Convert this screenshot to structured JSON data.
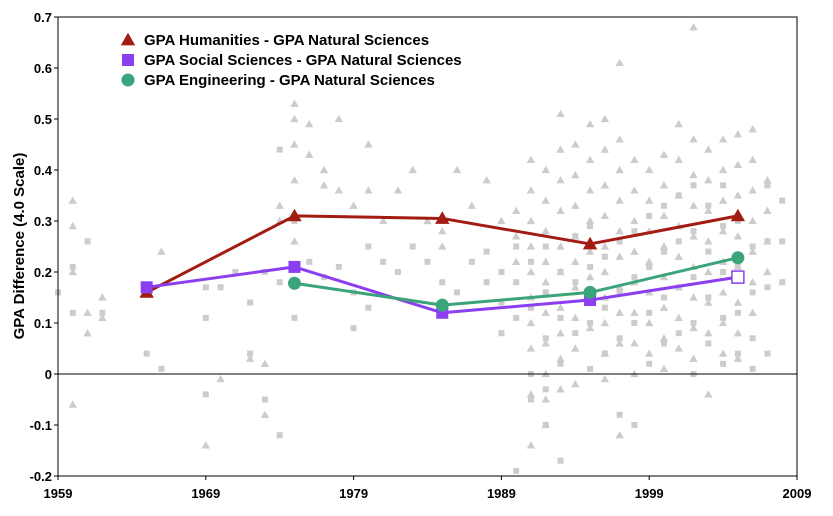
{
  "chart_data": {
    "type": "line",
    "title": "",
    "xlabel": "",
    "ylabel": "GPA Difference (4.0 Scale)",
    "xlim": [
      1959,
      2009
    ],
    "ylim": [
      -0.2,
      0.7
    ],
    "x_ticks": [
      "1959",
      "1969",
      "1979",
      "1989",
      "1999",
      "2009"
    ],
    "y_ticks": [
      "-0.2",
      "-0.1",
      "0",
      "0.1",
      "0.2",
      "0.3",
      "0.4",
      "0.5",
      "0.6",
      "0.7"
    ],
    "legend_position": "top-left",
    "series": [
      {
        "name": "GPA Humanities - GPA Natural Sciences",
        "marker": "triangle",
        "color": "#a31c13",
        "x": [
          1965,
          1975,
          1985,
          1995,
          2005
        ],
        "values": [
          0.16,
          0.31,
          0.305,
          0.255,
          0.31
        ]
      },
      {
        "name": "GPA Social Sciences - GPA Natural Sciences",
        "marker": "square",
        "color": "#8b3ff0",
        "x": [
          1965,
          1975,
          1985,
          1995,
          2005
        ],
        "values": [
          0.17,
          0.21,
          0.12,
          0.145,
          0.19
        ]
      },
      {
        "name": "GPA Engineering - GPA Natural Sciences",
        "marker": "circle",
        "color": "#3aa57a",
        "x": [
          1975,
          1985,
          1995,
          2005
        ],
        "values": [
          0.178,
          0.135,
          0.16,
          0.228
        ]
      }
    ],
    "background_points": {
      "color": "#cccccc",
      "triangles": [
        [
          1960,
          0.34
        ],
        [
          1960,
          0.29
        ],
        [
          1960,
          0.2
        ],
        [
          1960,
          -0.06
        ],
        [
          1961,
          0.12
        ],
        [
          1961,
          0.08
        ],
        [
          1962,
          0.15
        ],
        [
          1962,
          0.11
        ],
        [
          1966,
          0.24
        ],
        [
          1969,
          -0.14
        ],
        [
          1970,
          -0.01
        ],
        [
          1972,
          0.03
        ],
        [
          1973,
          0.02
        ],
        [
          1973,
          -0.08
        ],
        [
          1974,
          0.33
        ],
        [
          1974,
          0.3
        ],
        [
          1975,
          0.53
        ],
        [
          1975,
          0.5
        ],
        [
          1975,
          0.45
        ],
        [
          1975,
          0.38
        ],
        [
          1975,
          0.26
        ],
        [
          1976,
          0.49
        ],
        [
          1976,
          0.43
        ],
        [
          1977,
          0.4
        ],
        [
          1977,
          0.37
        ],
        [
          1978,
          0.5
        ],
        [
          1978,
          0.36
        ],
        [
          1979,
          0.33
        ],
        [
          1980,
          0.45
        ],
        [
          1980,
          0.36
        ],
        [
          1981,
          0.3
        ],
        [
          1982,
          0.36
        ],
        [
          1983,
          0.4
        ],
        [
          1984,
          0.3
        ],
        [
          1985,
          0.28
        ],
        [
          1985,
          0.25
        ],
        [
          1986,
          0.4
        ],
        [
          1987,
          0.33
        ],
        [
          1988,
          0.38
        ],
        [
          1989,
          0.3
        ],
        [
          1990,
          0.32
        ],
        [
          1990,
          0.27
        ],
        [
          1990,
          0.22
        ],
        [
          1991,
          0.42
        ],
        [
          1991,
          0.36
        ],
        [
          1991,
          0.3
        ],
        [
          1991,
          0.25
        ],
        [
          1991,
          0.2
        ],
        [
          1991,
          0.15
        ],
        [
          1991,
          0.1
        ],
        [
          1991,
          0.05
        ],
        [
          1991,
          -0.04
        ],
        [
          1991,
          -0.14
        ],
        [
          1992,
          0.4
        ],
        [
          1992,
          0.34
        ],
        [
          1992,
          0.28
        ],
        [
          1992,
          0.22
        ],
        [
          1992,
          0.18
        ],
        [
          1992,
          0.12
        ],
        [
          1992,
          0.06
        ],
        [
          1992,
          0.0
        ],
        [
          1992,
          -0.05
        ],
        [
          1992,
          -0.1
        ],
        [
          1993,
          0.51
        ],
        [
          1993,
          0.44
        ],
        [
          1993,
          0.38
        ],
        [
          1993,
          0.32
        ],
        [
          1993,
          0.25
        ],
        [
          1993,
          0.2
        ],
        [
          1993,
          0.13
        ],
        [
          1993,
          0.08
        ],
        [
          1993,
          0.03
        ],
        [
          1993,
          -0.03
        ],
        [
          1994,
          0.45
        ],
        [
          1994,
          0.39
        ],
        [
          1994,
          0.33
        ],
        [
          1994,
          0.27
        ],
        [
          1994,
          0.22
        ],
        [
          1994,
          0.17
        ],
        [
          1994,
          0.11
        ],
        [
          1994,
          0.05
        ],
        [
          1994,
          -0.02
        ],
        [
          1995,
          0.49
        ],
        [
          1995,
          0.42
        ],
        [
          1995,
          0.36
        ],
        [
          1995,
          0.3
        ],
        [
          1995,
          0.24
        ],
        [
          1995,
          0.19
        ],
        [
          1995,
          0.14
        ],
        [
          1995,
          0.09
        ],
        [
          1996,
          0.5
        ],
        [
          1996,
          0.44
        ],
        [
          1996,
          0.37
        ],
        [
          1996,
          0.31
        ],
        [
          1996,
          0.25
        ],
        [
          1996,
          0.2
        ],
        [
          1996,
          0.15
        ],
        [
          1996,
          0.1
        ],
        [
          1996,
          0.04
        ],
        [
          1996,
          -0.01
        ],
        [
          1997,
          0.61
        ],
        [
          1997,
          0.46
        ],
        [
          1997,
          0.4
        ],
        [
          1997,
          0.34
        ],
        [
          1997,
          0.28
        ],
        [
          1997,
          0.23
        ],
        [
          1997,
          0.17
        ],
        [
          1997,
          0.12
        ],
        [
          1997,
          0.06
        ],
        [
          1997,
          -0.12
        ],
        [
          1998,
          0.42
        ],
        [
          1998,
          0.36
        ],
        [
          1998,
          0.3
        ],
        [
          1998,
          0.24
        ],
        [
          1998,
          0.18
        ],
        [
          1998,
          0.12
        ],
        [
          1998,
          0.06
        ],
        [
          1998,
          0.0
        ],
        [
          1999,
          0.4
        ],
        [
          1999,
          0.34
        ],
        [
          1999,
          0.28
        ],
        [
          1999,
          0.22
        ],
        [
          1999,
          0.16
        ],
        [
          1999,
          0.1
        ],
        [
          1999,
          0.04
        ],
        [
          2000,
          0.43
        ],
        [
          2000,
          0.37
        ],
        [
          2000,
          0.31
        ],
        [
          2000,
          0.25
        ],
        [
          2000,
          0.19
        ],
        [
          2000,
          0.13
        ],
        [
          2000,
          0.07
        ],
        [
          2000,
          0.01
        ],
        [
          2001,
          0.49
        ],
        [
          2001,
          0.42
        ],
        [
          2001,
          0.35
        ],
        [
          2001,
          0.29
        ],
        [
          2001,
          0.23
        ],
        [
          2001,
          0.17
        ],
        [
          2001,
          0.11
        ],
        [
          2001,
          0.05
        ],
        [
          2002,
          0.68
        ],
        [
          2002,
          0.46
        ],
        [
          2002,
          0.39
        ],
        [
          2002,
          0.33
        ],
        [
          2002,
          0.27
        ],
        [
          2002,
          0.21
        ],
        [
          2002,
          0.15
        ],
        [
          2002,
          0.09
        ],
        [
          2002,
          0.03
        ],
        [
          2003,
          0.44
        ],
        [
          2003,
          0.38
        ],
        [
          2003,
          0.32
        ],
        [
          2003,
          0.26
        ],
        [
          2003,
          0.2
        ],
        [
          2003,
          0.14
        ],
        [
          2003,
          0.08
        ],
        [
          2003,
          -0.04
        ],
        [
          2004,
          0.46
        ],
        [
          2004,
          0.4
        ],
        [
          2004,
          0.34
        ],
        [
          2004,
          0.28
        ],
        [
          2004,
          0.22
        ],
        [
          2004,
          0.16
        ],
        [
          2004,
          0.1
        ],
        [
          2004,
          0.04
        ],
        [
          2005,
          0.47
        ],
        [
          2005,
          0.41
        ],
        [
          2005,
          0.35
        ],
        [
          2005,
          0.27
        ],
        [
          2005,
          0.21
        ],
        [
          2005,
          0.14
        ],
        [
          2005,
          0.08
        ],
        [
          2005,
          0.03
        ],
        [
          2006,
          0.48
        ],
        [
          2006,
          0.42
        ],
        [
          2006,
          0.36
        ],
        [
          2006,
          0.3
        ],
        [
          2006,
          0.24
        ],
        [
          2006,
          0.18
        ],
        [
          2006,
          0.12
        ],
        [
          2007,
          0.38
        ],
        [
          2007,
          0.32
        ],
        [
          2007,
          0.26
        ],
        [
          2007,
          0.2
        ]
      ],
      "squares": [
        [
          1959,
          0.16
        ],
        [
          1960,
          0.21
        ],
        [
          1960,
          0.12
        ],
        [
          1961,
          0.26
        ],
        [
          1962,
          0.12
        ],
        [
          1965,
          0.04
        ],
        [
          1966,
          0.01
        ],
        [
          1969,
          0.17
        ],
        [
          1969,
          0.11
        ],
        [
          1969,
          -0.04
        ],
        [
          1970,
          0.17
        ],
        [
          1971,
          0.2
        ],
        [
          1972,
          0.14
        ],
        [
          1972,
          0.04
        ],
        [
          1973,
          0.2
        ],
        [
          1973,
          -0.05
        ],
        [
          1974,
          0.44
        ],
        [
          1974,
          0.18
        ],
        [
          1974,
          -0.12
        ],
        [
          1975,
          0.3
        ],
        [
          1975,
          0.11
        ],
        [
          1976,
          0.22
        ],
        [
          1977,
          0.19
        ],
        [
          1978,
          0.21
        ],
        [
          1979,
          0.16
        ],
        [
          1979,
          0.09
        ],
        [
          1980,
          0.25
        ],
        [
          1980,
          0.13
        ],
        [
          1981,
          0.22
        ],
        [
          1982,
          0.2
        ],
        [
          1983,
          0.25
        ],
        [
          1984,
          0.22
        ],
        [
          1985,
          0.18
        ],
        [
          1986,
          0.16
        ],
        [
          1987,
          0.22
        ],
        [
          1988,
          0.24
        ],
        [
          1988,
          0.18
        ],
        [
          1989,
          0.2
        ],
        [
          1989,
          0.14
        ],
        [
          1989,
          0.08
        ],
        [
          1990,
          0.25
        ],
        [
          1990,
          0.18
        ],
        [
          1990,
          0.11
        ],
        [
          1990,
          -0.19
        ],
        [
          1991,
          0.22
        ],
        [
          1991,
          0.13
        ],
        [
          1991,
          0.0
        ],
        [
          1991,
          -0.05
        ],
        [
          1992,
          0.25
        ],
        [
          1992,
          0.16
        ],
        [
          1992,
          0.07
        ],
        [
          1992,
          -0.03
        ],
        [
          1992,
          -0.1
        ],
        [
          1993,
          0.2
        ],
        [
          1993,
          0.11
        ],
        [
          1993,
          0.02
        ],
        [
          1993,
          -0.17
        ],
        [
          1994,
          0.27
        ],
        [
          1994,
          0.18
        ],
        [
          1994,
          0.08
        ],
        [
          1995,
          0.29
        ],
        [
          1995,
          0.21
        ],
        [
          1995,
          0.1
        ],
        [
          1995,
          0.01
        ],
        [
          1996,
          0.23
        ],
        [
          1996,
          0.13
        ],
        [
          1996,
          0.04
        ],
        [
          1997,
          0.26
        ],
        [
          1997,
          0.16
        ],
        [
          1997,
          0.07
        ],
        [
          1997,
          -0.08
        ],
        [
          1998,
          0.28
        ],
        [
          1998,
          0.19
        ],
        [
          1998,
          0.1
        ],
        [
          1998,
          -0.1
        ],
        [
          1999,
          0.31
        ],
        [
          1999,
          0.21
        ],
        [
          1999,
          0.12
        ],
        [
          1999,
          0.02
        ],
        [
          2000,
          0.33
        ],
        [
          2000,
          0.24
        ],
        [
          2000,
          0.15
        ],
        [
          2000,
          0.06
        ],
        [
          2001,
          0.35
        ],
        [
          2001,
          0.26
        ],
        [
          2001,
          0.17
        ],
        [
          2001,
          0.08
        ],
        [
          2002,
          0.37
        ],
        [
          2002,
          0.28
        ],
        [
          2002,
          0.19
        ],
        [
          2002,
          0.1
        ],
        [
          2002,
          0.0
        ],
        [
          2003,
          0.33
        ],
        [
          2003,
          0.24
        ],
        [
          2003,
          0.15
        ],
        [
          2003,
          0.06
        ],
        [
          2004,
          0.37
        ],
        [
          2004,
          0.29
        ],
        [
          2004,
          0.2
        ],
        [
          2004,
          0.11
        ],
        [
          2004,
          0.02
        ],
        [
          2005,
          0.3
        ],
        [
          2005,
          0.21
        ],
        [
          2005,
          0.12
        ],
        [
          2005,
          0.04
        ],
        [
          2006,
          0.25
        ],
        [
          2006,
          0.16
        ],
        [
          2006,
          0.07
        ],
        [
          2006,
          0.01
        ],
        [
          2007,
          0.37
        ],
        [
          2007,
          0.26
        ],
        [
          2007,
          0.17
        ],
        [
          2007,
          0.04
        ],
        [
          2008,
          0.34
        ],
        [
          2008,
          0.26
        ],
        [
          2008,
          0.18
        ]
      ]
    }
  }
}
